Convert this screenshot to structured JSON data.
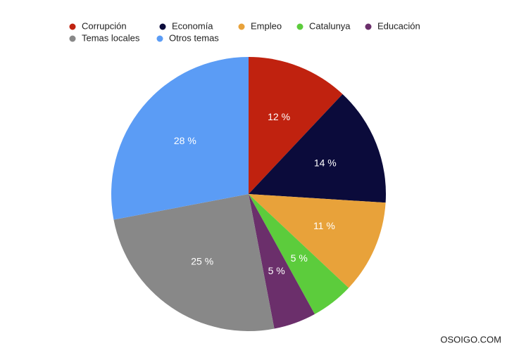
{
  "chart_data": {
    "type": "pie",
    "categories": [
      "Corrupción",
      "Economía",
      "Empleo",
      "Catalunya",
      "Educación",
      "Temas locales",
      "Otros temas"
    ],
    "values": [
      12,
      14,
      11,
      5,
      5,
      25,
      28
    ],
    "value_labels": [
      "12 %",
      "14 %",
      "11 %",
      "5 %",
      "5 %",
      "25 %",
      "28 %"
    ],
    "colors": [
      "#c0220f",
      "#0b0b3b",
      "#e8a23a",
      "#5ccc3c",
      "#6b2f6b",
      "#888888",
      "#5b9cf5"
    ],
    "legend": "top",
    "source": "OSOIGO.COM"
  }
}
